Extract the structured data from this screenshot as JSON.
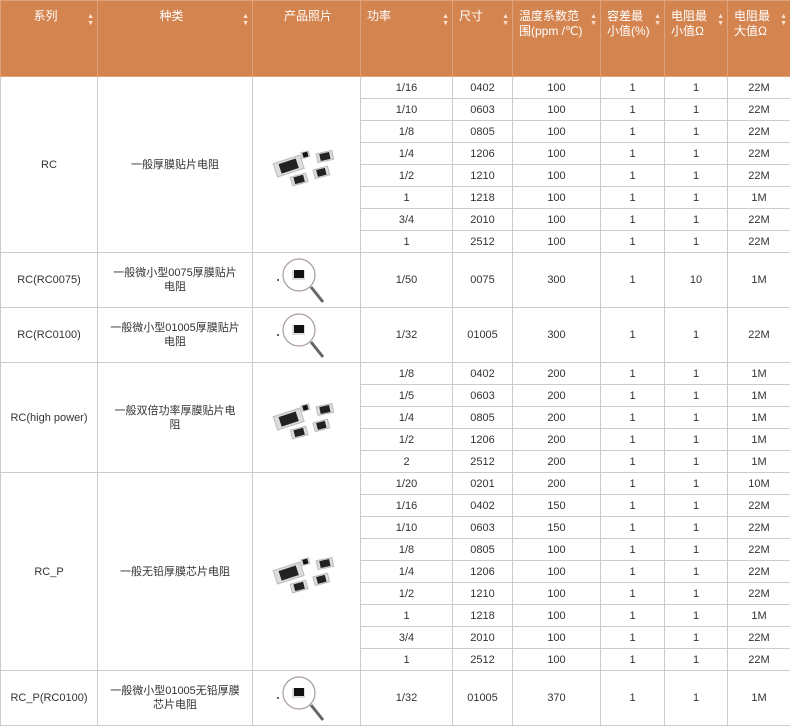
{
  "header": {
    "columns": [
      {
        "label": "系列",
        "sortable": true,
        "center": true
      },
      {
        "label": "种类",
        "sortable": true,
        "center": true
      },
      {
        "label": "产品照片",
        "sortable": false,
        "center": true
      },
      {
        "label": "功率",
        "sortable": true
      },
      {
        "label": "尺寸",
        "sortable": true
      },
      {
        "label": "温度系数范围(ppm /℃)",
        "sortable": true
      },
      {
        "label": "容差最小值(%)",
        "sortable": true
      },
      {
        "label": "电阻最小值Ω",
        "sortable": true
      },
      {
        "label": "电阻最大值Ω",
        "sortable": true
      }
    ],
    "color": "#d4844f"
  },
  "groups": [
    {
      "series": "RC",
      "type": "一般厚膜贴片电阻",
      "photo": "chips-icon",
      "rows": [
        [
          "1/16",
          "0402",
          "100",
          "1",
          "1",
          "22M"
        ],
        [
          "1/10",
          "0603",
          "100",
          "1",
          "1",
          "22M"
        ],
        [
          "1/8",
          "0805",
          "100",
          "1",
          "1",
          "22M"
        ],
        [
          "1/4",
          "1206",
          "100",
          "1",
          "1",
          "22M"
        ],
        [
          "1/2",
          "1210",
          "100",
          "1",
          "1",
          "22M"
        ],
        [
          "1",
          "1218",
          "100",
          "1",
          "1",
          "1M"
        ],
        [
          "3/4",
          "2010",
          "100",
          "1",
          "1",
          "22M"
        ],
        [
          "1",
          "2512",
          "100",
          "1",
          "1",
          "22M"
        ]
      ]
    },
    {
      "series": "RC(RC0075)",
      "type": "一般微小型0075厚膜贴片电阻",
      "photo": "magnifier-icon",
      "rows": [
        [
          "1/50",
          "0075",
          "300",
          "1",
          "10",
          "1M"
        ]
      ]
    },
    {
      "series": "RC(RC0100)",
      "type": "一般微小型01005厚膜贴片电阻",
      "photo": "magnifier-icon",
      "rows": [
        [
          "1/32",
          "01005",
          "300",
          "1",
          "1",
          "22M"
        ]
      ]
    },
    {
      "series": "RC(high power)",
      "type": "一般双倍功率厚膜贴片电阻",
      "photo": "chips-icon",
      "rows": [
        [
          "1/8",
          "0402",
          "200",
          "1",
          "1",
          "1M"
        ],
        [
          "1/5",
          "0603",
          "200",
          "1",
          "1",
          "1M"
        ],
        [
          "1/4",
          "0805",
          "200",
          "1",
          "1",
          "1M"
        ],
        [
          "1/2",
          "1206",
          "200",
          "1",
          "1",
          "1M"
        ],
        [
          "2",
          "2512",
          "200",
          "1",
          "1",
          "1M"
        ]
      ]
    },
    {
      "series": "RC_P",
      "type": "一般无铅厚膜芯片电阻",
      "photo": "chips-icon",
      "rows": [
        [
          "1/20",
          "0201",
          "200",
          "1",
          "1",
          "10M"
        ],
        [
          "1/16",
          "0402",
          "150",
          "1",
          "1",
          "22M"
        ],
        [
          "1/10",
          "0603",
          "150",
          "1",
          "1",
          "22M"
        ],
        [
          "1/8",
          "0805",
          "100",
          "1",
          "1",
          "22M"
        ],
        [
          "1/4",
          "1206",
          "100",
          "1",
          "1",
          "22M"
        ],
        [
          "1/2",
          "1210",
          "100",
          "1",
          "1",
          "22M"
        ],
        [
          "1",
          "1218",
          "100",
          "1",
          "1",
          "1M"
        ],
        [
          "3/4",
          "2010",
          "100",
          "1",
          "1",
          "22M"
        ],
        [
          "1",
          "2512",
          "100",
          "1",
          "1",
          "22M"
        ]
      ]
    },
    {
      "series": "RC_P(RC0100)",
      "type": "一般微小型01005无铅厚膜芯片电阻",
      "photo": "magnifier-icon",
      "rows": [
        [
          "1/32",
          "01005",
          "370",
          "1",
          "1",
          "1M"
        ]
      ]
    }
  ]
}
